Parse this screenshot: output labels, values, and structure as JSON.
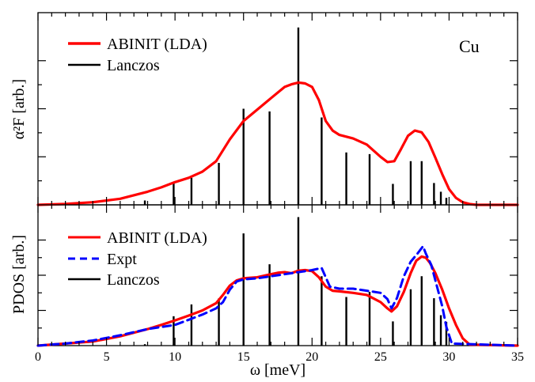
{
  "chart_data": [
    {
      "type": "line",
      "panel": "top",
      "ylabel": "α²F  [arb.]",
      "xlim": [
        0,
        35
      ],
      "annotation": "Cu",
      "legend_position": "top-left",
      "series": [
        {
          "name": "ABINIT (LDA)",
          "color": "#ff0000",
          "style": "solid",
          "x": [
            0,
            2,
            4,
            6,
            8,
            9,
            10,
            11,
            12,
            13,
            14,
            15,
            16,
            17,
            18,
            18.5,
            19,
            19.5,
            20,
            20.5,
            21,
            21.5,
            22,
            23,
            24,
            25,
            25.5,
            26,
            26.5,
            27,
            27.5,
            28,
            28.5,
            29,
            29.5,
            30,
            30.5,
            31,
            31.5,
            32,
            33,
            35
          ],
          "y": [
            0,
            0.01,
            0.03,
            0.07,
            0.15,
            0.2,
            0.26,
            0.31,
            0.38,
            0.5,
            0.75,
            0.96,
            1.09,
            1.22,
            1.35,
            1.38,
            1.4,
            1.39,
            1.35,
            1.2,
            0.96,
            0.85,
            0.8,
            0.76,
            0.69,
            0.55,
            0.49,
            0.5,
            0.64,
            0.79,
            0.85,
            0.83,
            0.72,
            0.54,
            0.35,
            0.18,
            0.08,
            0.03,
            0.01,
            0,
            0,
            0
          ]
        },
        {
          "name": "Lanczos",
          "color": "#000000",
          "style": "sticks",
          "x": [
            7.8,
            9.9,
            11.2,
            13.2,
            15.0,
            16.9,
            19.0,
            20.7,
            22.5,
            24.2,
            25.9,
            27.2,
            28.0,
            28.9,
            29.4,
            29.8
          ],
          "y": [
            0.05,
            0.25,
            0.31,
            0.48,
            1.1,
            1.07,
            2.03,
            1.0,
            0.6,
            0.58,
            0.24,
            0.5,
            0.5,
            0.25,
            0.15,
            0.08
          ]
        }
      ]
    },
    {
      "type": "line",
      "panel": "bottom",
      "xlabel": "ω [meV]",
      "ylabel": "PDOS  [arb.]",
      "xlim": [
        0,
        35
      ],
      "xticks": [
        "0",
        "5",
        "10",
        "15",
        "20",
        "25",
        "30",
        "35"
      ],
      "legend_position": "top-left",
      "series": [
        {
          "name": "ABINIT (LDA)",
          "color": "#ff0000",
          "style": "solid",
          "x": [
            0,
            2,
            4,
            6,
            8,
            9,
            10,
            11,
            12,
            13,
            13.5,
            14,
            14.5,
            15,
            16,
            17,
            17.5,
            18,
            18.5,
            19,
            19.5,
            20,
            20.5,
            21,
            21.5,
            22,
            23,
            24,
            25,
            25.5,
            25.8,
            26.2,
            26.7,
            27.2,
            27.6,
            28,
            28.3,
            28.6,
            29,
            29.5,
            30,
            30.5,
            31,
            31.5,
            35
          ],
          "y": [
            0,
            0.1,
            0.2,
            0.45,
            0.8,
            1.0,
            1.22,
            1.45,
            1.7,
            2.05,
            2.45,
            2.9,
            3.15,
            3.25,
            3.3,
            3.45,
            3.52,
            3.55,
            3.5,
            3.62,
            3.65,
            3.6,
            3.3,
            2.85,
            2.65,
            2.62,
            2.55,
            2.45,
            2.1,
            1.8,
            1.65,
            1.9,
            2.6,
            3.5,
            4.1,
            4.3,
            4.25,
            4.0,
            3.5,
            2.7,
            1.8,
            1.0,
            0.35,
            0.05,
            0
          ]
        },
        {
          "name": "Expt",
          "color": "#0000ff",
          "style": "dashed",
          "x": [
            0,
            2,
            4,
            6,
            8,
            10,
            11,
            12,
            13,
            13.5,
            14,
            14.5,
            15,
            16,
            17,
            18,
            19,
            20,
            20.7,
            21.3,
            22,
            23,
            24,
            25,
            25.5,
            25.8,
            26.2,
            26.7,
            27.2,
            27.7,
            28.1,
            28.3,
            28.7,
            29,
            29.5,
            29.8,
            30.2,
            35
          ],
          "y": [
            0,
            0.1,
            0.25,
            0.5,
            0.8,
            1.0,
            1.25,
            1.5,
            1.8,
            2.1,
            2.7,
            3.1,
            3.2,
            3.25,
            3.35,
            3.45,
            3.55,
            3.65,
            3.75,
            2.85,
            2.75,
            2.75,
            2.65,
            2.55,
            2.25,
            1.8,
            2.3,
            3.35,
            4.05,
            4.45,
            4.8,
            4.45,
            3.9,
            3.15,
            1.9,
            0.9,
            0.1,
            0
          ]
        },
        {
          "name": "Lanczos",
          "color": "#000000",
          "style": "sticks",
          "x": [
            7.8,
            9.9,
            11.2,
            13.2,
            15.0,
            16.9,
            19.0,
            20.7,
            22.5,
            24.2,
            25.9,
            27.2,
            28.0,
            28.9,
            29.4,
            29.8
          ],
          "y": [
            0.07,
            1.42,
            1.99,
            2.28,
            5.42,
            3.93,
            6.21,
            3.35,
            2.35,
            2.6,
            1.17,
            2.72,
            3.35,
            2.29,
            1.47,
            1.15
          ]
        }
      ]
    }
  ]
}
